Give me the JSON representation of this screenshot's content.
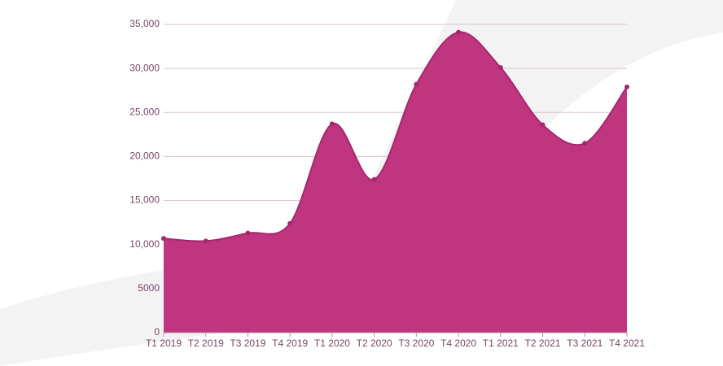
{
  "chart_data": {
    "type": "area",
    "categories": [
      "T1 2019",
      "T2 2019",
      "T3 2019",
      "T4 2019",
      "T1 2020",
      "T2 2020",
      "T3 2020",
      "T4 2020",
      "T1 2021",
      "T2 2021",
      "T3 2021",
      "T4 2021"
    ],
    "values": [
      10700,
      10400,
      11300,
      12400,
      23700,
      17400,
      28200,
      34100,
      30100,
      23600,
      21500,
      27900
    ],
    "color": "#c0357f",
    "line_color": "#a4286a",
    "ylim": [
      0,
      35000
    ],
    "yticks": [
      0,
      5000,
      {
        "value": 10000,
        "label": "10,000"
      },
      {
        "value": 15000,
        "label": "15,000"
      },
      {
        "value": 20000,
        "label": "20,000"
      },
      {
        "value": 25000,
        "label": "25,000"
      },
      {
        "value": 30000,
        "label": "30,000"
      },
      {
        "value": 35000,
        "label": "35,000"
      }
    ],
    "grid": true
  }
}
